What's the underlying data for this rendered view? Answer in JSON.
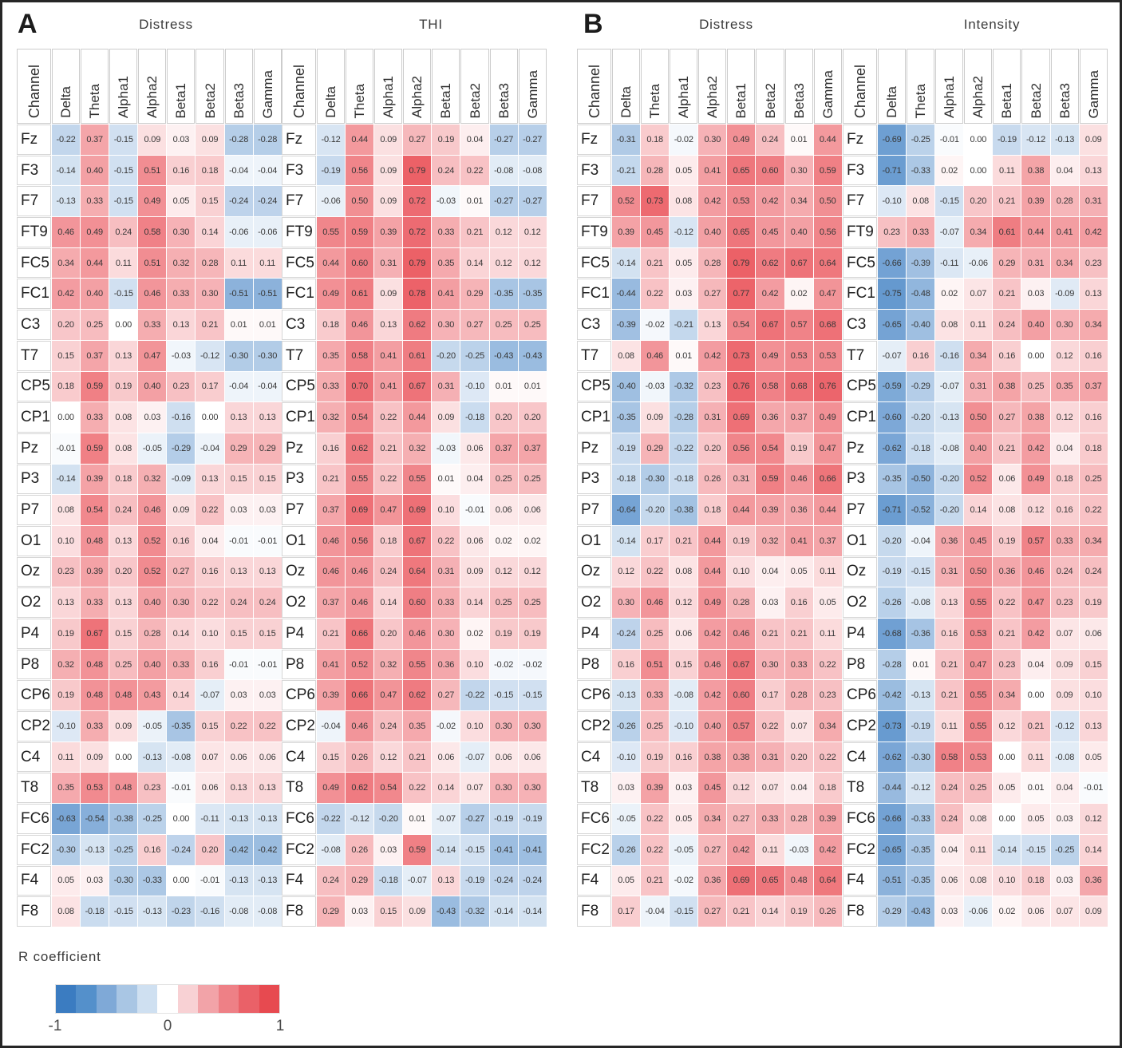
{
  "figure": {
    "panel_a_label": "A",
    "panel_b_label": "B"
  },
  "legend": {
    "title": "R coefficient",
    "ticks": [
      "-1",
      "0",
      "1"
    ],
    "colors": [
      "#3b7cc1",
      "#5490cb",
      "#7fa9d7",
      "#a9c6e4",
      "#cfe0f1",
      "#ffffff",
      "#f8d1d4",
      "#f2a3a8",
      "#ee8086",
      "#ea6168",
      "#e74a50"
    ],
    "scale_min": -1,
    "scale_max": 1
  },
  "chart_data": [
    {
      "type": "heatmap",
      "panel": "A",
      "title": "Distress",
      "row_header": "Channel",
      "columns": [
        "Delta",
        "Theta",
        "Alpha1",
        "Alpha2",
        "Beta1",
        "Beta2",
        "Beta3",
        "Gamma"
      ],
      "rows": [
        "Fz",
        "F3",
        "F7",
        "FT9",
        "FC5",
        "FC1",
        "C3",
        "T7",
        "CP5",
        "CP1",
        "Pz",
        "P3",
        "P7",
        "O1",
        "Oz",
        "O2",
        "P4",
        "P8",
        "CP6",
        "CP2",
        "C4",
        "T8",
        "FC6",
        "FC2",
        "F4",
        "F8"
      ],
      "values": [
        [
          -0.22,
          0.37,
          -0.15,
          0.09,
          0.03,
          0.09,
          -0.28,
          -0.28
        ],
        [
          -0.14,
          0.4,
          -0.15,
          0.51,
          0.16,
          0.18,
          -0.04,
          -0.04
        ],
        [
          -0.13,
          0.33,
          -0.15,
          0.49,
          0.05,
          0.15,
          -0.24,
          -0.24
        ],
        [
          0.46,
          0.49,
          0.24,
          0.58,
          0.3,
          0.14,
          -0.06,
          -0.06
        ],
        [
          0.34,
          0.44,
          0.11,
          0.51,
          0.32,
          0.28,
          0.11,
          0.11
        ],
        [
          0.42,
          0.4,
          -0.15,
          0.46,
          0.33,
          0.3,
          -0.51,
          -0.51
        ],
        [
          0.2,
          0.25,
          0.0,
          0.33,
          0.13,
          0.21,
          0.01,
          0.01
        ],
        [
          0.15,
          0.37,
          0.13,
          0.47,
          -0.03,
          -0.12,
          -0.3,
          -0.3
        ],
        [
          0.18,
          0.59,
          0.19,
          0.4,
          0.23,
          0.17,
          -0.04,
          -0.04
        ],
        [
          0.0,
          0.33,
          0.08,
          0.03,
          -0.16,
          0.0,
          0.13,
          0.13
        ],
        [
          -0.01,
          0.59,
          0.08,
          -0.05,
          -0.29,
          -0.04,
          0.29,
          0.29
        ],
        [
          -0.14,
          0.39,
          0.18,
          0.32,
          -0.09,
          0.13,
          0.15,
          0.15
        ],
        [
          0.08,
          0.54,
          0.24,
          0.46,
          0.09,
          0.22,
          0.03,
          0.03
        ],
        [
          0.1,
          0.48,
          0.13,
          0.52,
          0.16,
          0.04,
          -0.01,
          -0.01
        ],
        [
          0.23,
          0.39,
          0.2,
          0.52,
          0.27,
          0.16,
          0.13,
          0.13
        ],
        [
          0.13,
          0.33,
          0.13,
          0.4,
          0.3,
          0.22,
          0.24,
          0.24
        ],
        [
          0.19,
          0.67,
          0.15,
          0.28,
          0.14,
          0.1,
          0.15,
          0.15
        ],
        [
          0.32,
          0.48,
          0.25,
          0.4,
          0.33,
          0.16,
          -0.01,
          -0.01
        ],
        [
          0.19,
          0.48,
          0.48,
          0.43,
          0.14,
          -0.07,
          0.03,
          0.03
        ],
        [
          -0.1,
          0.33,
          0.09,
          -0.05,
          -0.35,
          0.15,
          0.22,
          0.22
        ],
        [
          0.11,
          0.09,
          0.0,
          -0.13,
          -0.08,
          0.07,
          0.06,
          0.06
        ],
        [
          0.35,
          0.53,
          0.48,
          0.23,
          -0.01,
          0.06,
          0.13,
          0.13
        ],
        [
          -0.63,
          -0.54,
          -0.38,
          -0.25,
          0.0,
          -0.11,
          -0.13,
          -0.13
        ],
        [
          -0.3,
          -0.13,
          -0.25,
          0.16,
          -0.24,
          0.2,
          -0.42,
          -0.42
        ],
        [
          0.05,
          0.03,
          -0.3,
          -0.33,
          0.0,
          -0.01,
          -0.13,
          -0.13
        ],
        [
          0.08,
          -0.18,
          -0.15,
          -0.13,
          -0.23,
          -0.16,
          -0.08,
          -0.08
        ]
      ]
    },
    {
      "type": "heatmap",
      "panel": "A",
      "title": "THI",
      "row_header": "Channel",
      "columns": [
        "Delta",
        "Theta",
        "Alpha1",
        "Alpha2",
        "Beta1",
        "Beta2",
        "Beta3",
        "Gamma"
      ],
      "rows": [
        "Fz",
        "F3",
        "F7",
        "FT9",
        "FC5",
        "FC1",
        "C3",
        "T7",
        "CP5",
        "CP1",
        "Pz",
        "P3",
        "P7",
        "O1",
        "Oz",
        "O2",
        "P4",
        "P8",
        "CP6",
        "CP2",
        "C4",
        "T8",
        "FC6",
        "FC2",
        "F4",
        "F8"
      ],
      "values": [
        [
          -0.12,
          0.44,
          0.09,
          0.27,
          0.19,
          0.04,
          -0.27,
          -0.27
        ],
        [
          -0.19,
          0.56,
          0.09,
          0.79,
          0.24,
          0.22,
          -0.08,
          -0.08
        ],
        [
          -0.06,
          0.5,
          0.09,
          0.72,
          -0.03,
          0.01,
          -0.27,
          -0.27
        ],
        [
          0.55,
          0.59,
          0.39,
          0.72,
          0.33,
          0.21,
          0.12,
          0.12
        ],
        [
          0.44,
          0.6,
          0.31,
          0.79,
          0.35,
          0.14,
          0.12,
          0.12
        ],
        [
          0.49,
          0.61,
          0.09,
          0.78,
          0.41,
          0.29,
          -0.35,
          -0.35
        ],
        [
          0.18,
          0.46,
          0.13,
          0.62,
          0.3,
          0.27,
          0.25,
          0.25
        ],
        [
          0.35,
          0.58,
          0.41,
          0.61,
          -0.2,
          -0.25,
          -0.43,
          -0.43
        ],
        [
          0.33,
          0.7,
          0.41,
          0.67,
          0.31,
          -0.1,
          0.01,
          0.01
        ],
        [
          0.32,
          0.54,
          0.22,
          0.44,
          0.09,
          -0.18,
          0.2,
          0.2
        ],
        [
          0.16,
          0.62,
          0.21,
          0.32,
          -0.03,
          0.06,
          0.37,
          0.37
        ],
        [
          0.21,
          0.55,
          0.22,
          0.55,
          0.01,
          0.04,
          0.25,
          0.25
        ],
        [
          0.37,
          0.69,
          0.47,
          0.69,
          0.1,
          -0.01,
          0.06,
          0.06
        ],
        [
          0.46,
          0.56,
          0.18,
          0.67,
          0.22,
          0.06,
          0.02,
          0.02
        ],
        [
          0.46,
          0.46,
          0.24,
          0.64,
          0.31,
          0.09,
          0.12,
          0.12
        ],
        [
          0.37,
          0.46,
          0.14,
          0.6,
          0.33,
          0.14,
          0.25,
          0.25
        ],
        [
          0.21,
          0.66,
          0.2,
          0.46,
          0.3,
          0.02,
          0.19,
          0.19
        ],
        [
          0.41,
          0.52,
          0.32,
          0.55,
          0.36,
          0.1,
          -0.02,
          -0.02
        ],
        [
          0.39,
          0.66,
          0.47,
          0.62,
          0.27,
          -0.22,
          -0.15,
          -0.15
        ],
        [
          -0.04,
          0.46,
          0.24,
          0.35,
          -0.02,
          0.1,
          0.3,
          0.3
        ],
        [
          0.15,
          0.26,
          0.12,
          0.21,
          0.06,
          -0.07,
          0.06,
          0.06
        ],
        [
          0.49,
          0.62,
          0.54,
          0.22,
          0.14,
          0.07,
          0.3,
          0.3
        ],
        [
          -0.22,
          -0.12,
          -0.2,
          0.01,
          -0.07,
          -0.27,
          -0.19,
          -0.19
        ],
        [
          -0.08,
          0.26,
          0.03,
          0.59,
          -0.14,
          -0.15,
          -0.41,
          -0.41
        ],
        [
          0.24,
          0.29,
          -0.18,
          -0.07,
          0.13,
          -0.19,
          -0.24,
          -0.24
        ],
        [
          0.29,
          0.03,
          0.15,
          0.09,
          -0.43,
          -0.32,
          -0.14,
          -0.14
        ]
      ]
    },
    {
      "type": "heatmap",
      "panel": "B",
      "title": "Distress",
      "row_header": "Channel",
      "columns": [
        "Delta",
        "Theta",
        "Alpha1",
        "Alpha2",
        "Beta1",
        "Beta2",
        "Beta3",
        "Gamma"
      ],
      "rows": [
        "Fz",
        "F3",
        "F7",
        "FT9",
        "FC5",
        "FC1",
        "C3",
        "T7",
        "CP5",
        "CP1",
        "Pz",
        "P3",
        "P7",
        "O1",
        "Oz",
        "O2",
        "P4",
        "P8",
        "CP6",
        "CP2",
        "C4",
        "T8",
        "FC6",
        "FC2",
        "F4",
        "F8"
      ],
      "values": [
        [
          -0.31,
          0.18,
          -0.02,
          0.3,
          0.49,
          0.24,
          0.01,
          0.44
        ],
        [
          -0.21,
          0.28,
          0.05,
          0.41,
          0.65,
          0.6,
          0.3,
          0.59
        ],
        [
          0.52,
          0.73,
          0.08,
          0.42,
          0.53,
          0.42,
          0.34,
          0.5
        ],
        [
          0.39,
          0.45,
          -0.12,
          0.4,
          0.65,
          0.45,
          0.4,
          0.56
        ],
        [
          -0.14,
          0.21,
          0.05,
          0.28,
          0.79,
          0.62,
          0.67,
          0.64
        ],
        [
          -0.44,
          0.22,
          0.03,
          0.27,
          0.77,
          0.42,
          0.02,
          0.47
        ],
        [
          -0.39,
          -0.02,
          -0.21,
          0.13,
          0.54,
          0.67,
          0.57,
          0.68
        ],
        [
          0.08,
          0.46,
          0.01,
          0.42,
          0.73,
          0.49,
          0.53,
          0.53
        ],
        [
          -0.4,
          -0.03,
          -0.32,
          0.23,
          0.76,
          0.58,
          0.68,
          0.76
        ],
        [
          -0.35,
          0.09,
          -0.28,
          0.31,
          0.69,
          0.36,
          0.37,
          0.49
        ],
        [
          -0.19,
          0.29,
          -0.22,
          0.2,
          0.56,
          0.54,
          0.19,
          0.47
        ],
        [
          -0.18,
          -0.3,
          -0.18,
          0.26,
          0.31,
          0.59,
          0.46,
          0.66
        ],
        [
          -0.64,
          -0.2,
          -0.38,
          0.18,
          0.44,
          0.39,
          0.36,
          0.44
        ],
        [
          -0.14,
          0.17,
          0.21,
          0.44,
          0.19,
          0.32,
          0.41,
          0.37
        ],
        [
          0.12,
          0.22,
          0.08,
          0.44,
          0.1,
          0.04,
          0.05,
          0.11
        ],
        [
          0.3,
          0.46,
          0.12,
          0.49,
          0.28,
          0.03,
          0.16,
          0.05
        ],
        [
          -0.24,
          0.25,
          0.06,
          0.42,
          0.46,
          0.21,
          0.21,
          0.11
        ],
        [
          0.16,
          0.51,
          0.15,
          0.46,
          0.67,
          0.3,
          0.33,
          0.22
        ],
        [
          -0.13,
          0.33,
          -0.08,
          0.42,
          0.6,
          0.17,
          0.28,
          0.23
        ],
        [
          -0.26,
          0.25,
          -0.1,
          0.4,
          0.57,
          0.22,
          0.07,
          0.34
        ],
        [
          -0.1,
          0.19,
          0.16,
          0.38,
          0.38,
          0.31,
          0.2,
          0.22
        ],
        [
          0.03,
          0.39,
          0.03,
          0.45,
          0.12,
          0.07,
          0.04,
          0.18
        ],
        [
          -0.05,
          0.22,
          0.05,
          0.34,
          0.27,
          0.33,
          0.28,
          0.39
        ],
        [
          -0.26,
          0.22,
          -0.05,
          0.27,
          0.42,
          0.11,
          -0.03,
          0.42
        ],
        [
          0.05,
          0.21,
          -0.02,
          0.36,
          0.69,
          0.65,
          0.48,
          0.64
        ],
        [
          0.17,
          -0.04,
          -0.15,
          0.27,
          0.21,
          0.14,
          0.19,
          0.26
        ]
      ]
    },
    {
      "type": "heatmap",
      "panel": "B",
      "title": "Intensity",
      "row_header": "Channel",
      "columns": [
        "Delta",
        "Theta",
        "Alpha1",
        "Alpha2",
        "Beta1",
        "Beta2",
        "Beta3",
        "Gamma"
      ],
      "rows": [
        "Fz",
        "F3",
        "F7",
        "FT9",
        "FC5",
        "FC1",
        "C3",
        "T7",
        "CP5",
        "CP1",
        "Pz",
        "P3",
        "P7",
        "O1",
        "Oz",
        "O2",
        "P4",
        "P8",
        "CP6",
        "CP2",
        "C4",
        "T8",
        "FC6",
        "FC2",
        "F4",
        "F8"
      ],
      "values": [
        [
          -0.69,
          -0.25,
          -0.01,
          0.0,
          -0.19,
          -0.12,
          -0.13,
          0.09
        ],
        [
          -0.71,
          -0.33,
          0.02,
          0.0,
          0.11,
          0.38,
          0.04,
          0.13
        ],
        [
          -0.1,
          0.08,
          -0.15,
          0.2,
          0.21,
          0.39,
          0.28,
          0.31
        ],
        [
          0.23,
          0.33,
          -0.07,
          0.34,
          0.61,
          0.44,
          0.41,
          0.42
        ],
        [
          -0.66,
          -0.39,
          -0.11,
          -0.06,
          0.29,
          0.31,
          0.34,
          0.23
        ],
        [
          -0.75,
          -0.48,
          0.02,
          0.07,
          0.21,
          0.03,
          -0.09,
          0.13
        ],
        [
          -0.65,
          -0.4,
          0.08,
          0.11,
          0.24,
          0.4,
          0.3,
          0.34
        ],
        [
          -0.07,
          0.16,
          -0.16,
          0.34,
          0.16,
          0.0,
          0.12,
          0.16
        ],
        [
          -0.59,
          -0.29,
          -0.07,
          0.31,
          0.38,
          0.25,
          0.35,
          0.37
        ],
        [
          -0.6,
          -0.2,
          -0.13,
          0.5,
          0.27,
          0.38,
          0.12,
          0.16
        ],
        [
          -0.62,
          -0.18,
          -0.08,
          0.4,
          0.21,
          0.42,
          0.04,
          0.18
        ],
        [
          -0.35,
          -0.5,
          -0.2,
          0.52,
          0.06,
          0.49,
          0.18,
          0.25
        ],
        [
          -0.71,
          -0.52,
          -0.2,
          0.14,
          0.08,
          0.12,
          0.16,
          0.22
        ],
        [
          -0.2,
          -0.04,
          0.36,
          0.45,
          0.19,
          0.57,
          0.33,
          0.34
        ],
        [
          -0.19,
          -0.15,
          0.31,
          0.5,
          0.36,
          0.46,
          0.24,
          0.24
        ],
        [
          -0.26,
          -0.08,
          0.13,
          0.55,
          0.22,
          0.47,
          0.23,
          0.19
        ],
        [
          -0.68,
          -0.36,
          0.16,
          0.53,
          0.21,
          0.42,
          0.07,
          0.06
        ],
        [
          -0.28,
          0.01,
          0.21,
          0.47,
          0.23,
          0.04,
          0.09,
          0.15
        ],
        [
          -0.42,
          -0.13,
          0.21,
          0.55,
          0.34,
          0.0,
          0.09,
          0.1
        ],
        [
          -0.73,
          -0.19,
          0.11,
          0.55,
          0.12,
          0.21,
          -0.12,
          0.13
        ],
        [
          -0.62,
          -0.3,
          0.58,
          0.53,
          0.0,
          0.11,
          -0.08,
          0.05
        ],
        [
          -0.44,
          -0.12,
          0.24,
          0.25,
          0.05,
          0.01,
          0.04,
          -0.01
        ],
        [
          -0.66,
          -0.33,
          0.24,
          0.08,
          0.0,
          0.05,
          0.03,
          0.12
        ],
        [
          -0.65,
          -0.35,
          0.04,
          0.11,
          -0.14,
          -0.15,
          -0.25,
          0.14
        ],
        [
          -0.51,
          -0.35,
          0.06,
          0.08,
          0.1,
          0.18,
          0.03,
          0.36
        ],
        [
          -0.29,
          -0.43,
          0.03,
          -0.06,
          0.02,
          0.06,
          0.07,
          0.09
        ]
      ]
    }
  ]
}
